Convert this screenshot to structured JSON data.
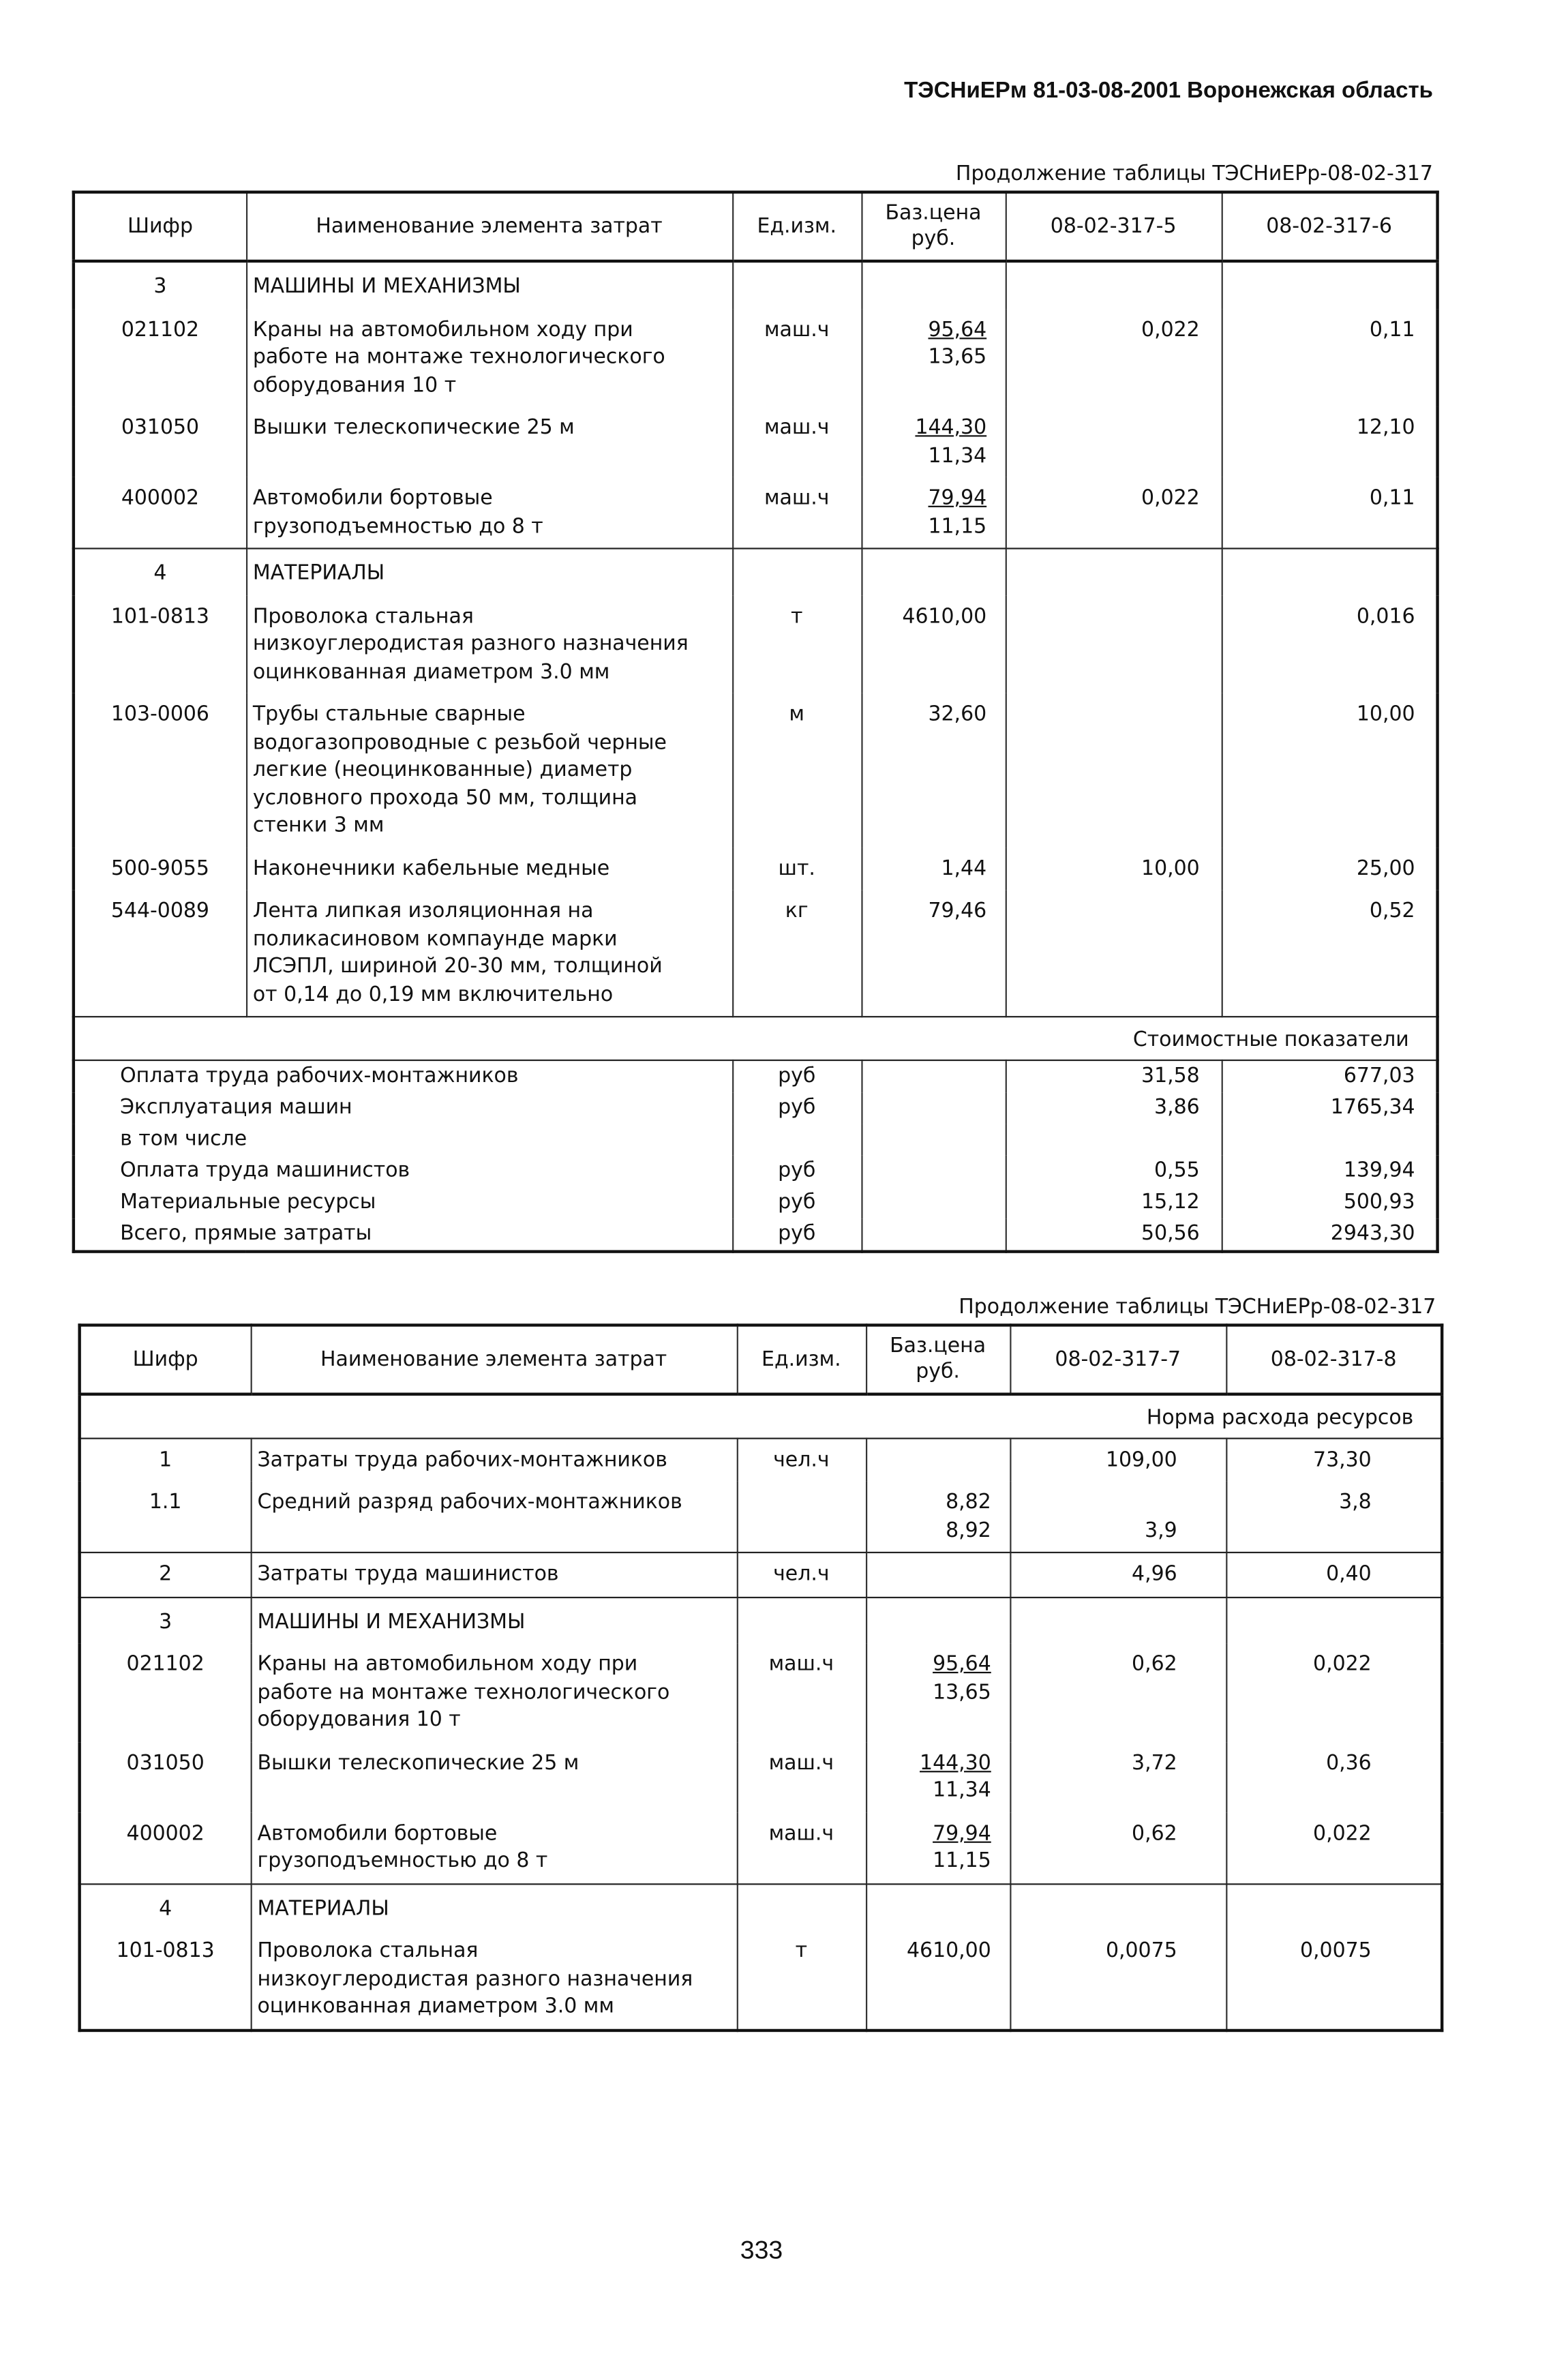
{
  "running_head": "ТЭСНиЕРм 81-03-08-2001 Воронежская область",
  "page_number": "333",
  "headers": [
    "Шифр",
    "Наименование элемента затрат",
    "Ед.изм.",
    "Баз.цена\nруб."
  ],
  "table1": {
    "caption": "Продолжение таблицы ТЭСНиЕРр-08-02-317",
    "columns": [
      "08-02-317-5",
      "08-02-317-6"
    ],
    "groups": [
      [
        {
          "section": true,
          "code": "3",
          "name": "МАШИНЫ И МЕХАНИЗМЫ"
        },
        {
          "code": "021102",
          "name": "Краны на автомобильном ходу при\nработе на монтаже технологического\nоборудования 10 т",
          "unit": "маш.ч",
          "price": {
            "num": "95,64",
            "den": "13,65"
          },
          "v5": "0,022",
          "v6": "0,11"
        },
        {
          "code": "031050",
          "name": "Вышки телескопические 25 м",
          "unit": "маш.ч",
          "price": {
            "num": "144,30",
            "den": "11,34"
          },
          "v5": "",
          "v6": "12,10"
        },
        {
          "code": "400002",
          "name": "Автомобили бортовые\nгрузоподъемностью до 8 т",
          "unit": "маш.ч",
          "price": {
            "num": "79,94",
            "den": "11,15"
          },
          "v5": "0,022",
          "v6": "0,11"
        }
      ],
      [
        {
          "section": true,
          "code": "4",
          "name": "МАТЕРИАЛЫ"
        },
        {
          "code": "101-0813",
          "name": "Проволока стальная\nнизкоуглеродистая разного назначения\nоцинкованная диаметром 3.0 мм",
          "unit": "т",
          "price": "4610,00",
          "v5": "",
          "v6": "0,016"
        },
        {
          "code": "103-0006",
          "name": "Трубы стальные сварные\nводогазопроводные с резьбой черные\nлегкие (неоцинкованные) диаметр\nусловного прохода 50 мм, толщина\nстенки 3 мм",
          "unit": "м",
          "price": "32,60",
          "v5": "",
          "v6": "10,00"
        },
        {
          "code": "500-9055",
          "name": "Наконечники кабельные медные",
          "unit": "шт.",
          "price": "1,44",
          "v5": "10,00",
          "v6": "25,00"
        },
        {
          "code": "544-0089",
          "name": "Лента липкая изоляционная на\nполикасиновом компаунде марки\nЛСЭПЛ, шириной 20-30 мм, толщиной\nот 0,14 до 0,19 мм включительно",
          "unit": "кг",
          "price": "79,46",
          "v5": "",
          "v6": "0,52"
        }
      ]
    ],
    "band_label": "Стоимостные показатели",
    "summary": [
      {
        "label": "Оплата труда рабочих-монтажников",
        "unit": "руб",
        "v5": "31,58",
        "v6": "677,03",
        "bold": true
      },
      {
        "label": "Эксплуатация машин",
        "unit": "руб",
        "v5": "3,86",
        "v6": "1765,34",
        "bold": true
      },
      {
        "label": "в том числе",
        "unit": "",
        "v5": "",
        "v6": "",
        "bold": false
      },
      {
        "label": "Оплата труда машинистов",
        "unit": "руб",
        "v5": "0,55",
        "v6": "139,94",
        "bold": false
      },
      {
        "label": "Материальные ресурсы",
        "unit": "руб",
        "v5": "15,12",
        "v6": "500,93",
        "bold": true
      },
      {
        "label": "Всего, прямые затраты",
        "unit": "руб",
        "v5": "50,56",
        "v6": "2943,30",
        "bold": true
      }
    ]
  },
  "table2": {
    "caption": "Продолжение таблицы ТЭСНиЕРр-08-02-317",
    "columns": [
      "08-02-317-7",
      "08-02-317-8"
    ],
    "band_label": "Норма расхода ресурсов",
    "groups": [
      [
        {
          "code": "1",
          "code_bold": true,
          "name": "Затраты труда рабочих-монтажников",
          "unit": "чел.ч",
          "price": "",
          "v5": "109,00",
          "v6": "73,30"
        },
        {
          "code": "1.1",
          "name": "Средний разряд рабочих-монтажников",
          "unit": "",
          "price": [
            "8,82",
            "8,92"
          ],
          "v5": [
            "",
            "3,9"
          ],
          "v6": [
            "3,8",
            ""
          ]
        }
      ],
      [
        {
          "code": "2",
          "code_bold": true,
          "name": "Затраты труда машинистов",
          "unit": "чел.ч",
          "price": "",
          "v5": "4,96",
          "v6": "0,40"
        }
      ],
      [
        {
          "section": true,
          "code": "3",
          "name": "МАШИНЫ И МЕХАНИЗМЫ"
        },
        {
          "code": "021102",
          "name": "Краны на автомобильном ходу при\nработе на монтаже технологического\nоборудования 10 т",
          "unit": "маш.ч",
          "price": {
            "num": "95,64",
            "den": "13,65"
          },
          "v5": "0,62",
          "v6": "0,022"
        },
        {
          "code": "031050",
          "name": "Вышки телескопические 25 м",
          "unit": "маш.ч",
          "price": {
            "num": "144,30",
            "den": "11,34"
          },
          "v5": "3,72",
          "v6": "0,36"
        },
        {
          "code": "400002",
          "name": "Автомобили бортовые\nгрузоподъемностью до 8 т",
          "unit": "маш.ч",
          "price": {
            "num": "79,94",
            "den": "11,15"
          },
          "v5": "0,62",
          "v6": "0,022"
        }
      ],
      [
        {
          "section": true,
          "code": "4",
          "name": "МАТЕРИАЛЫ"
        },
        {
          "code": "101-0813",
          "name": "Проволока стальная\nнизкоуглеродистая разного назначения\nоцинкованная диаметром 3.0 мм",
          "unit": "т",
          "price": "4610,00",
          "v5": "0,0075",
          "v6": "0,0075"
        }
      ]
    ]
  }
}
